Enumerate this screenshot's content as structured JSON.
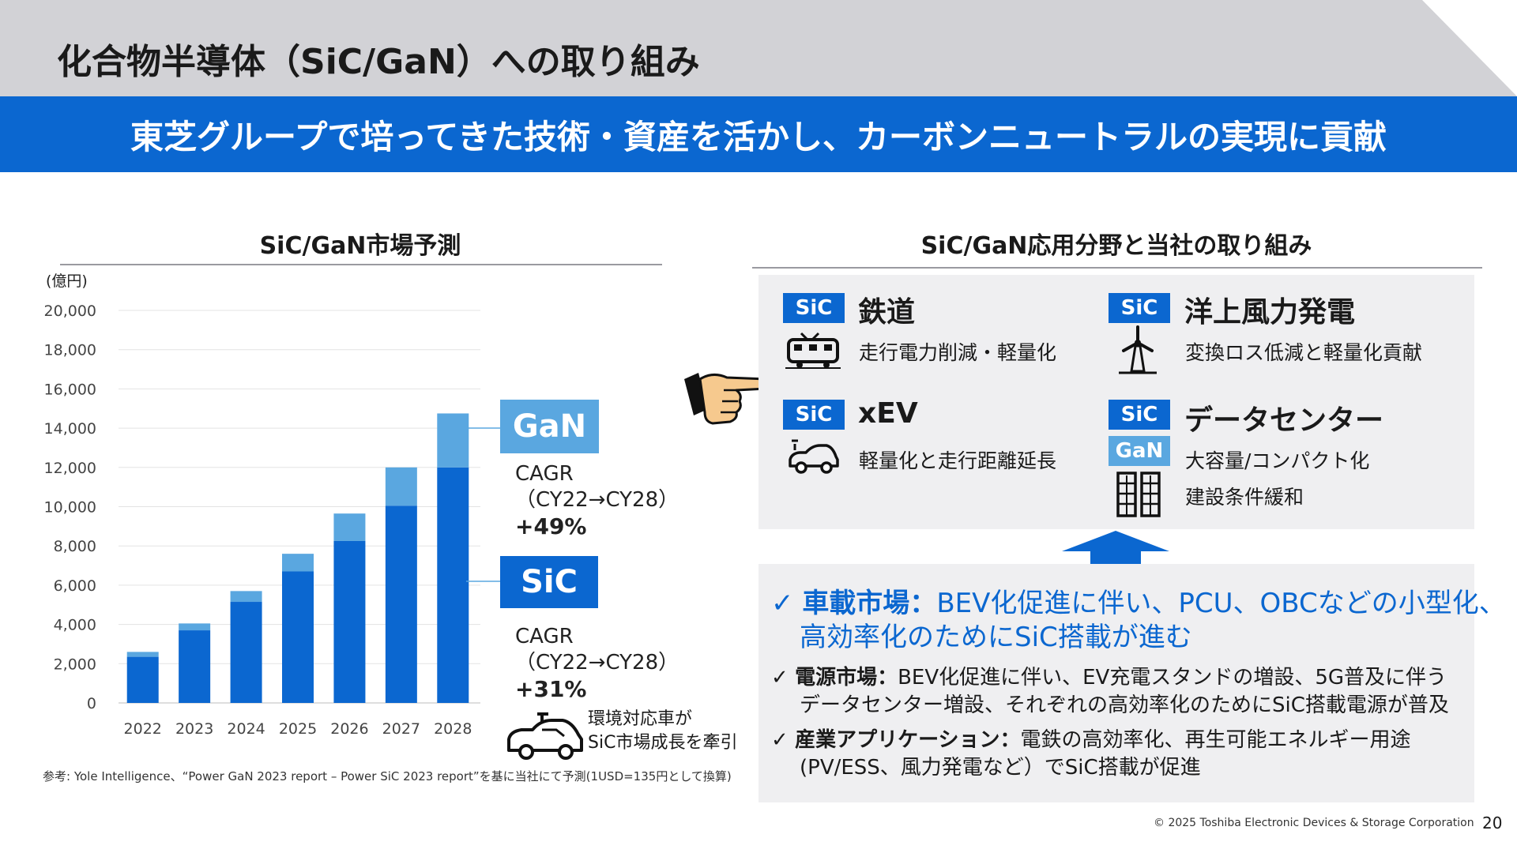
{
  "header": {
    "title": "化合物半導体（SiC/GaN）への取り組み",
    "banner": "東芝グループで培ってきた技術・資産を活かし、カーボンニュートラルの実現に貢献"
  },
  "left_panel": {
    "title": "SiC/GaN市場予測",
    "unit": "(億円)",
    "gan_label": "GaN",
    "sic_label": "SiC",
    "gan_cagr": {
      "line1": "CAGR",
      "line2": "（CY22→CY28）",
      "value": "+49%"
    },
    "sic_cagr": {
      "line1": "CAGR",
      "line2": "（CY22→CY28）",
      "value": "+31%"
    },
    "car_note_line1": "環境対応車が",
    "car_note_line2": "SiC市場成長を牽引",
    "source": "参考: Yole Intelligence、“Power GaN 2023 report – Power SiC 2023 report”を基に当社にて予測(1USD=135円として換算)"
  },
  "chart_data": {
    "type": "bar",
    "stacked": true,
    "categories": [
      "2022",
      "2023",
      "2024",
      "2025",
      "2026",
      "2027",
      "2028"
    ],
    "series": [
      {
        "name": "SiC",
        "color": "#0b67d0",
        "values": [
          2350,
          3700,
          5150,
          6700,
          8250,
          10050,
          12000
        ]
      },
      {
        "name": "GaN",
        "color": "#5aa7e0",
        "values": [
          250,
          350,
          550,
          900,
          1400,
          1950,
          2750
        ]
      }
    ],
    "ylim": [
      0,
      20000
    ],
    "yticks": [
      "0",
      "2,000",
      "4,000",
      "6,000",
      "8,000",
      "10,000",
      "12,000",
      "14,000",
      "16,000",
      "18,000",
      "20,000"
    ],
    "ylabel": "(億円)",
    "grid": true
  },
  "right_panel": {
    "title": "SiC/GaN応用分野と当社の取り組み",
    "apps": [
      {
        "tags": [
          "SiC"
        ],
        "title": "鉄道",
        "desc": [
          "走行電力削減・軽量化"
        ],
        "icon": "train-icon"
      },
      {
        "tags": [
          "SiC"
        ],
        "title": "洋上風力発電",
        "desc": [
          "変換ロス低減と軽量化貢献"
        ],
        "icon": "wind-turbine-icon"
      },
      {
        "tags": [
          "SiC"
        ],
        "title": "xEV",
        "desc": [
          "軽量化と走行距離延長"
        ],
        "icon": "ev-car-icon"
      },
      {
        "tags": [
          "SiC",
          "GaN"
        ],
        "title": "データセンター",
        "desc": [
          "大容量/コンパクト化",
          "建設条件緩和"
        ],
        "icon": "server-rack-icon"
      }
    ],
    "markets": [
      {
        "check": "✓",
        "head": "車載市場：",
        "body1": "BEV化促進に伴い、PCU、OBCなどの小型化、",
        "body2": "高効率化のためにSiC搭載が進む"
      },
      {
        "check": "✓",
        "head": "電源市場：",
        "body1": "BEV化促進に伴い、EV充電スタンドの増設、5G普及に伴う",
        "body2": "データセンター増設、それぞれの高効率化のためにSiC搭載電源が普及"
      },
      {
        "check": "✓",
        "head": "産業アプリケーション：",
        "body1": "電鉄の高効率化、再生可能エネルギー用途",
        "body2": "(PV/ESS、風力発電など）でSiC搭載が促進"
      }
    ]
  },
  "footer": {
    "copyright": "© 2025 Toshiba Electronic Devices & Storage Corporation",
    "page": "20"
  }
}
